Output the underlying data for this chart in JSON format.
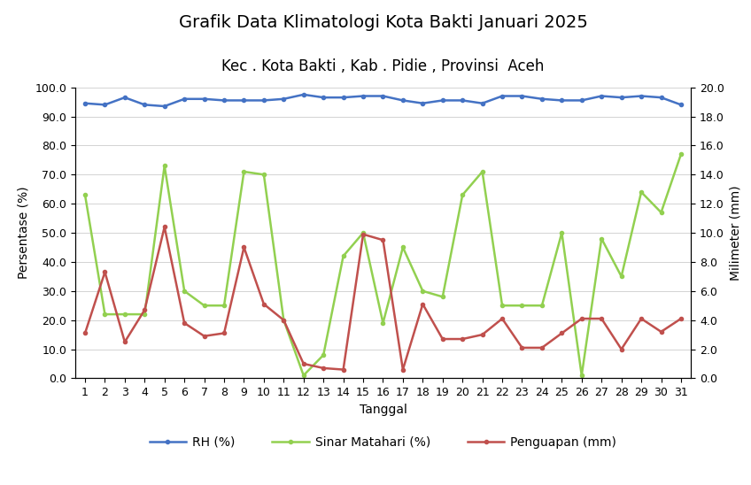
{
  "title": "Grafik Data Klimatologi Kota Bakti Januari 2025",
  "subtitle": "Kec . Kota Bakti , Kab . Pidie , Provinsi  Aceh",
  "xlabel": "Tanggal",
  "ylabel_left": "Persentase (%)",
  "ylabel_right": "Milimeter (mm)",
  "tanggal": [
    1,
    2,
    3,
    4,
    5,
    6,
    7,
    8,
    9,
    10,
    11,
    12,
    13,
    14,
    15,
    16,
    17,
    18,
    19,
    20,
    21,
    22,
    23,
    24,
    25,
    26,
    27,
    28,
    29,
    30,
    31
  ],
  "rh": [
    94.5,
    94.0,
    96.5,
    94.0,
    93.5,
    96.0,
    96.0,
    95.5,
    95.5,
    95.5,
    96.0,
    97.5,
    96.5,
    96.5,
    97.0,
    97.0,
    95.5,
    94.5,
    95.5,
    95.5,
    94.5,
    97.0,
    97.0,
    96.0,
    95.5,
    95.5,
    97.0,
    96.5,
    97.0,
    96.5,
    94.0
  ],
  "sinar_matahari": [
    63.0,
    22.0,
    22.0,
    22.0,
    73.0,
    30.0,
    25.0,
    25.0,
    71.0,
    70.0,
    20.0,
    1.0,
    8.0,
    42.0,
    50.0,
    19.0,
    45.0,
    30.0,
    28.0,
    63.0,
    71.0,
    25.0,
    25.0,
    25.0,
    50.0,
    1.0,
    48.0,
    35.0,
    64.0,
    57.0,
    77.0
  ],
  "penguapan": [
    3.1,
    7.3,
    2.5,
    4.7,
    10.4,
    3.8,
    2.9,
    3.1,
    9.0,
    5.1,
    4.0,
    1.0,
    0.7,
    0.6,
    9.9,
    9.5,
    0.6,
    5.1,
    2.7,
    2.7,
    3.0,
    4.1,
    2.1,
    2.1,
    3.1,
    4.1,
    4.1,
    2.0,
    4.1,
    3.2,
    4.1
  ],
  "rh_color": "#4472C4",
  "sinar_color": "#92D050",
  "penguapan_color": "#C0504D",
  "ylim_left": [
    0,
    100
  ],
  "ylim_right": [
    0,
    20
  ],
  "yticks_left": [
    0.0,
    10.0,
    20.0,
    30.0,
    40.0,
    50.0,
    60.0,
    70.0,
    80.0,
    90.0,
    100.0
  ],
  "yticks_right": [
    0.0,
    2.0,
    4.0,
    6.0,
    8.0,
    10.0,
    12.0,
    14.0,
    16.0,
    18.0,
    20.0
  ],
  "bg_color": "#FFFFFF",
  "legend_labels": [
    "RH (%)",
    "Sinar Matahari (%)",
    "Penguapan (mm)"
  ],
  "title_fontsize": 14,
  "subtitle_fontsize": 12,
  "axis_fontsize": 10,
  "tick_fontsize": 9
}
